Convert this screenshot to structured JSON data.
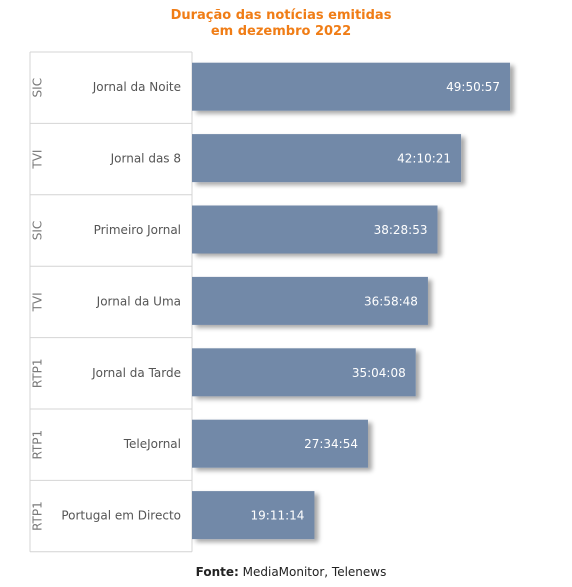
{
  "chart_data": {
    "type": "bar",
    "orientation": "horizontal",
    "title_lines": [
      "Duração das notícias emitidas",
      "em dezembro 2022"
    ],
    "groups": [
      "SIC",
      "TVI",
      "SIC",
      "TVI",
      "RTP1",
      "RTP1",
      "RTP1"
    ],
    "categories": [
      "Jornal da Noite",
      "Jornal das 8",
      "Primeiro Jornal",
      "Jornal da Uma",
      "Jornal da Tarde",
      "TeleJornal",
      "Portugal em Directo"
    ],
    "labels": [
      "49:50:57",
      "42:10:21",
      "38:28:53",
      "36:58:48",
      "35:04:08",
      "27:34:54",
      "19:11:14"
    ],
    "values": [
      49.8492,
      42.1725,
      38.4814,
      36.98,
      35.0689,
      27.5817,
      19.1872
    ],
    "xlim": [
      0,
      50
    ],
    "grid": false,
    "legend": "none",
    "bar_color": "#7289a8"
  },
  "source": {
    "label": "Fonte:",
    "text": "MediaMonitor, Telenews"
  }
}
